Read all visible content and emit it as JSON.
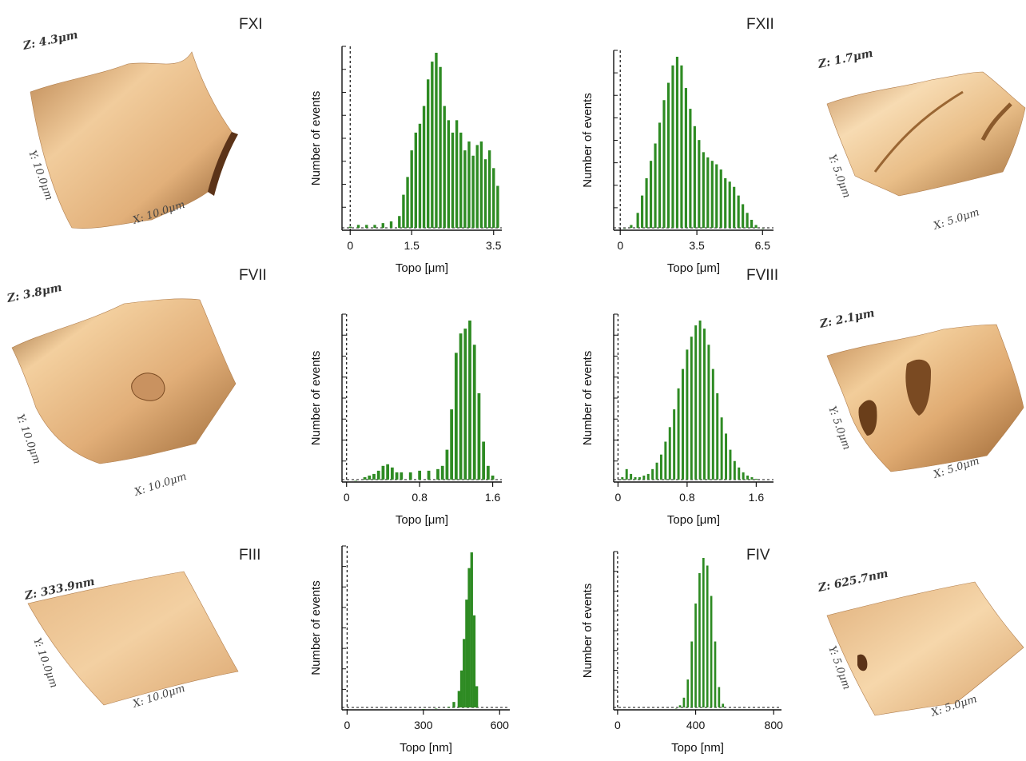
{
  "colors": {
    "bar": "#2e8b23",
    "bar_light": "#58b04a",
    "afm_light": "#f3cfa0",
    "afm_mid": "#d9a46d",
    "afm_dark": "#7a4a22"
  },
  "panels": [
    {
      "id": "FXI",
      "label": "FXI",
      "afm": {
        "z": "Z: 4.3μm",
        "y": "Y: 10.0μm",
        "x": "X: 10.0μm"
      }
    },
    {
      "id": "FXII",
      "label": "FXII",
      "afm": {
        "z": "Z: 1.7μm",
        "y": "Y: 5.0μm",
        "x": "X: 5.0μm"
      }
    },
    {
      "id": "FVII",
      "label": "FVII",
      "afm": {
        "z": "Z: 3.8μm",
        "y": "Y: 10.0μm",
        "x": "X: 10.0μm"
      }
    },
    {
      "id": "FVIII",
      "label": "FVIII",
      "afm": {
        "z": "Z: 2.1μm",
        "y": "Y: 5.0μm",
        "x": "X: 5.0μm"
      }
    },
    {
      "id": "FIII",
      "label": "FIII",
      "afm": {
        "z": "Z: 333.9nm",
        "y": "Y: 10.0μm",
        "x": "X: 10.0μm"
      }
    },
    {
      "id": "FIV",
      "label": "FIV",
      "afm": {
        "z": "Z: 625.7nm",
        "y": "Y: 5.0μm",
        "x": "X: 5.0μm"
      }
    }
  ],
  "chart_data": [
    {
      "type": "bar",
      "panel": "FXI",
      "xlabel": "Topo [μm]",
      "ylabel": "Number of events",
      "xlim": [
        -0.2,
        3.7
      ],
      "xticks": [
        "0",
        "1.5",
        "3.5"
      ],
      "xtick_values": [
        0,
        1.5,
        3.5
      ],
      "dashed_zero": true,
      "x": [
        0.0,
        0.2,
        0.4,
        0.6,
        0.8,
        1.0,
        1.2,
        1.3,
        1.4,
        1.5,
        1.6,
        1.7,
        1.8,
        1.9,
        2.0,
        2.1,
        2.2,
        2.3,
        2.4,
        2.5,
        2.6,
        2.7,
        2.8,
        2.9,
        3.0,
        3.1,
        3.2,
        3.3,
        3.4,
        3.5,
        3.6
      ],
      "values": [
        0.02,
        0.03,
        0.03,
        0.03,
        0.04,
        0.05,
        0.08,
        0.2,
        0.3,
        0.45,
        0.55,
        0.6,
        0.7,
        0.85,
        0.95,
        1.0,
        0.92,
        0.7,
        0.62,
        0.55,
        0.62,
        0.55,
        0.45,
        0.5,
        0.42,
        0.48,
        0.5,
        0.4,
        0.45,
        0.35,
        0.25
      ]
    },
    {
      "type": "bar",
      "panel": "FXII",
      "xlabel": "Topo [μm]",
      "ylabel": "Number of events",
      "xlim": [
        -0.3,
        7.0
      ],
      "xticks": [
        "0",
        "3.5",
        "6.5"
      ],
      "xtick_values": [
        0,
        3.5,
        6.5
      ],
      "dashed_zero": true,
      "x": [
        0.2,
        0.5,
        0.8,
        1.0,
        1.2,
        1.4,
        1.6,
        1.8,
        2.0,
        2.2,
        2.4,
        2.6,
        2.8,
        3.0,
        3.2,
        3.4,
        3.6,
        3.8,
        4.0,
        4.2,
        4.4,
        4.6,
        4.8,
        5.0,
        5.2,
        5.4,
        5.6,
        5.8,
        6.0,
        6.2,
        6.5
      ],
      "values": [
        0.01,
        0.03,
        0.1,
        0.2,
        0.3,
        0.4,
        0.5,
        0.62,
        0.75,
        0.85,
        0.95,
        1.0,
        0.95,
        0.82,
        0.7,
        0.6,
        0.52,
        0.45,
        0.42,
        0.4,
        0.38,
        0.35,
        0.3,
        0.28,
        0.25,
        0.2,
        0.15,
        0.1,
        0.06,
        0.03,
        0.01
      ]
    },
    {
      "type": "bar",
      "panel": "FVII",
      "xlabel": "Topo [μm]",
      "ylabel": "Number of events",
      "xlim": [
        -0.05,
        1.7
      ],
      "xticks": [
        "0",
        "0.8",
        "1.6"
      ],
      "xtick_values": [
        0,
        0.8,
        1.6
      ],
      "dashed_zero": true,
      "x": [
        0.1,
        0.2,
        0.25,
        0.3,
        0.35,
        0.4,
        0.45,
        0.5,
        0.55,
        0.6,
        0.7,
        0.8,
        0.9,
        1.0,
        1.05,
        1.1,
        1.15,
        1.2,
        1.25,
        1.3,
        1.35,
        1.4,
        1.45,
        1.5,
        1.55,
        1.6
      ],
      "values": [
        0.01,
        0.03,
        0.04,
        0.05,
        0.07,
        0.1,
        0.11,
        0.09,
        0.06,
        0.06,
        0.06,
        0.07,
        0.07,
        0.08,
        0.1,
        0.2,
        0.45,
        0.8,
        0.92,
        0.95,
        1.0,
        0.85,
        0.55,
        0.25,
        0.1,
        0.04
      ]
    },
    {
      "type": "bar",
      "panel": "FVIII",
      "xlabel": "Topo [μm]",
      "ylabel": "Number of events",
      "xlim": [
        -0.05,
        1.8
      ],
      "xticks": [
        "0",
        "0.8",
        "1.6"
      ],
      "xtick_values": [
        0,
        0.8,
        1.6
      ],
      "dashed_zero": true,
      "x": [
        0.05,
        0.1,
        0.15,
        0.2,
        0.25,
        0.3,
        0.35,
        0.4,
        0.45,
        0.5,
        0.55,
        0.6,
        0.65,
        0.7,
        0.75,
        0.8,
        0.85,
        0.9,
        0.95,
        1.0,
        1.05,
        1.1,
        1.15,
        1.2,
        1.25,
        1.3,
        1.35,
        1.4,
        1.45,
        1.5,
        1.55,
        1.6
      ],
      "values": [
        0.03,
        0.08,
        0.05,
        0.03,
        0.03,
        0.04,
        0.05,
        0.08,
        0.12,
        0.17,
        0.25,
        0.34,
        0.45,
        0.58,
        0.7,
        0.82,
        0.9,
        0.97,
        1.0,
        0.95,
        0.85,
        0.7,
        0.55,
        0.4,
        0.3,
        0.2,
        0.13,
        0.09,
        0.06,
        0.04,
        0.03,
        0.02
      ]
    },
    {
      "type": "bar",
      "panel": "FIII",
      "xlabel": "Topo [nm]",
      "ylabel": "Number of events",
      "xlim": [
        -20,
        640
      ],
      "xticks": [
        "0",
        "300",
        "600"
      ],
      "xtick_values": [
        0,
        300,
        600
      ],
      "dashed_zero": true,
      "x": [
        300,
        350,
        400,
        420,
        440,
        450,
        460,
        470,
        480,
        490,
        500,
        510
      ],
      "values": [
        0.005,
        0.01,
        0.02,
        0.05,
        0.12,
        0.25,
        0.45,
        0.7,
        0.9,
        1.0,
        0.6,
        0.15
      ]
    },
    {
      "type": "bar",
      "panel": "FIV",
      "xlabel": "Topo [nm]",
      "ylabel": "Number of events",
      "xlim": [
        -20,
        840
      ],
      "xticks": [
        "0",
        "400",
        "800"
      ],
      "xtick_values": [
        0,
        400,
        800
      ],
      "dashed_zero": true,
      "x": [
        300,
        320,
        340,
        360,
        380,
        400,
        420,
        440,
        460,
        480,
        500,
        520,
        540
      ],
      "values": [
        0.01,
        0.03,
        0.08,
        0.2,
        0.45,
        0.7,
        0.9,
        1.0,
        0.95,
        0.75,
        0.45,
        0.15,
        0.04
      ]
    }
  ]
}
